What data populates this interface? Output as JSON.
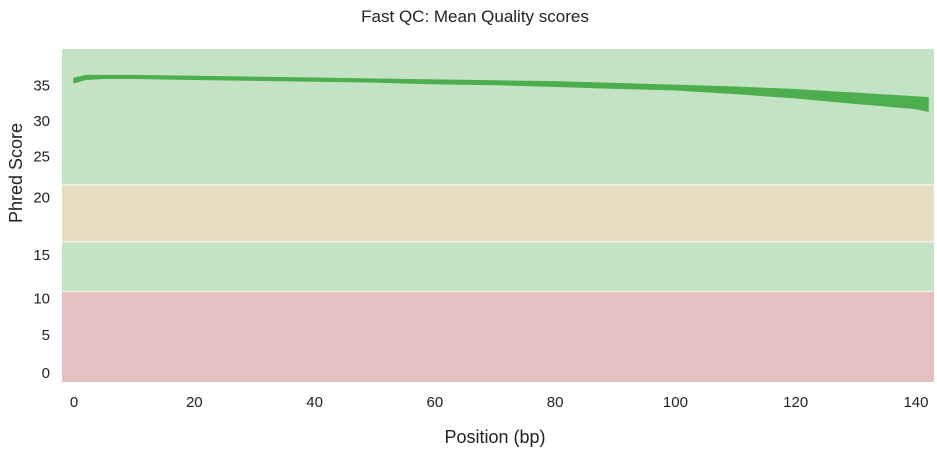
{
  "chart_data": {
    "type": "line",
    "title": "Fast QC:  Mean Quality scores",
    "xlabel": "Position (bp)",
    "ylabel": "Phred Score",
    "xlim": [
      -2,
      143
    ],
    "ylim": [
      -1,
      36.5
    ],
    "x_ticks": [
      0,
      20,
      40,
      60,
      80,
      100,
      120,
      140
    ],
    "y_ticks": [
      0,
      5,
      10,
      15,
      20,
      25,
      30,
      35
    ],
    "y_tick_positions": [
      0,
      4.3,
      8.4,
      13.3,
      19.8,
      24.4,
      28.4,
      32.4
    ],
    "grid": false,
    "legend": "none",
    "bands": [
      {
        "from": -1,
        "to": 9.2,
        "color": "#e5c0c0"
      },
      {
        "from": 9.2,
        "to": 14.8,
        "color": "#c4e3c4"
      },
      {
        "from": 14.8,
        "to": 21.2,
        "color": "#e8ddc2"
      },
      {
        "from": 21.2,
        "to": 36.5,
        "color": "#c4e3c4"
      }
    ],
    "series": [
      {
        "color": "#4cae4c",
        "x": [
          0,
          2,
          5,
          10,
          20,
          30,
          40,
          50,
          60,
          70,
          80,
          90,
          100,
          110,
          120,
          125,
          130,
          135,
          140,
          142
        ],
        "upper": [
          33.2,
          33.5,
          33.5,
          33.5,
          33.4,
          33.3,
          33.2,
          33.1,
          33.0,
          32.9,
          32.8,
          32.6,
          32.4,
          32.2,
          31.9,
          31.7,
          31.5,
          31.3,
          31.1,
          31.0
        ],
        "lower": [
          32.7,
          33.1,
          33.2,
          33.2,
          33.1,
          33.0,
          32.9,
          32.8,
          32.6,
          32.5,
          32.3,
          32.1,
          31.9,
          31.5,
          31.0,
          30.7,
          30.4,
          30.1,
          29.8,
          29.5
        ]
      }
    ]
  }
}
